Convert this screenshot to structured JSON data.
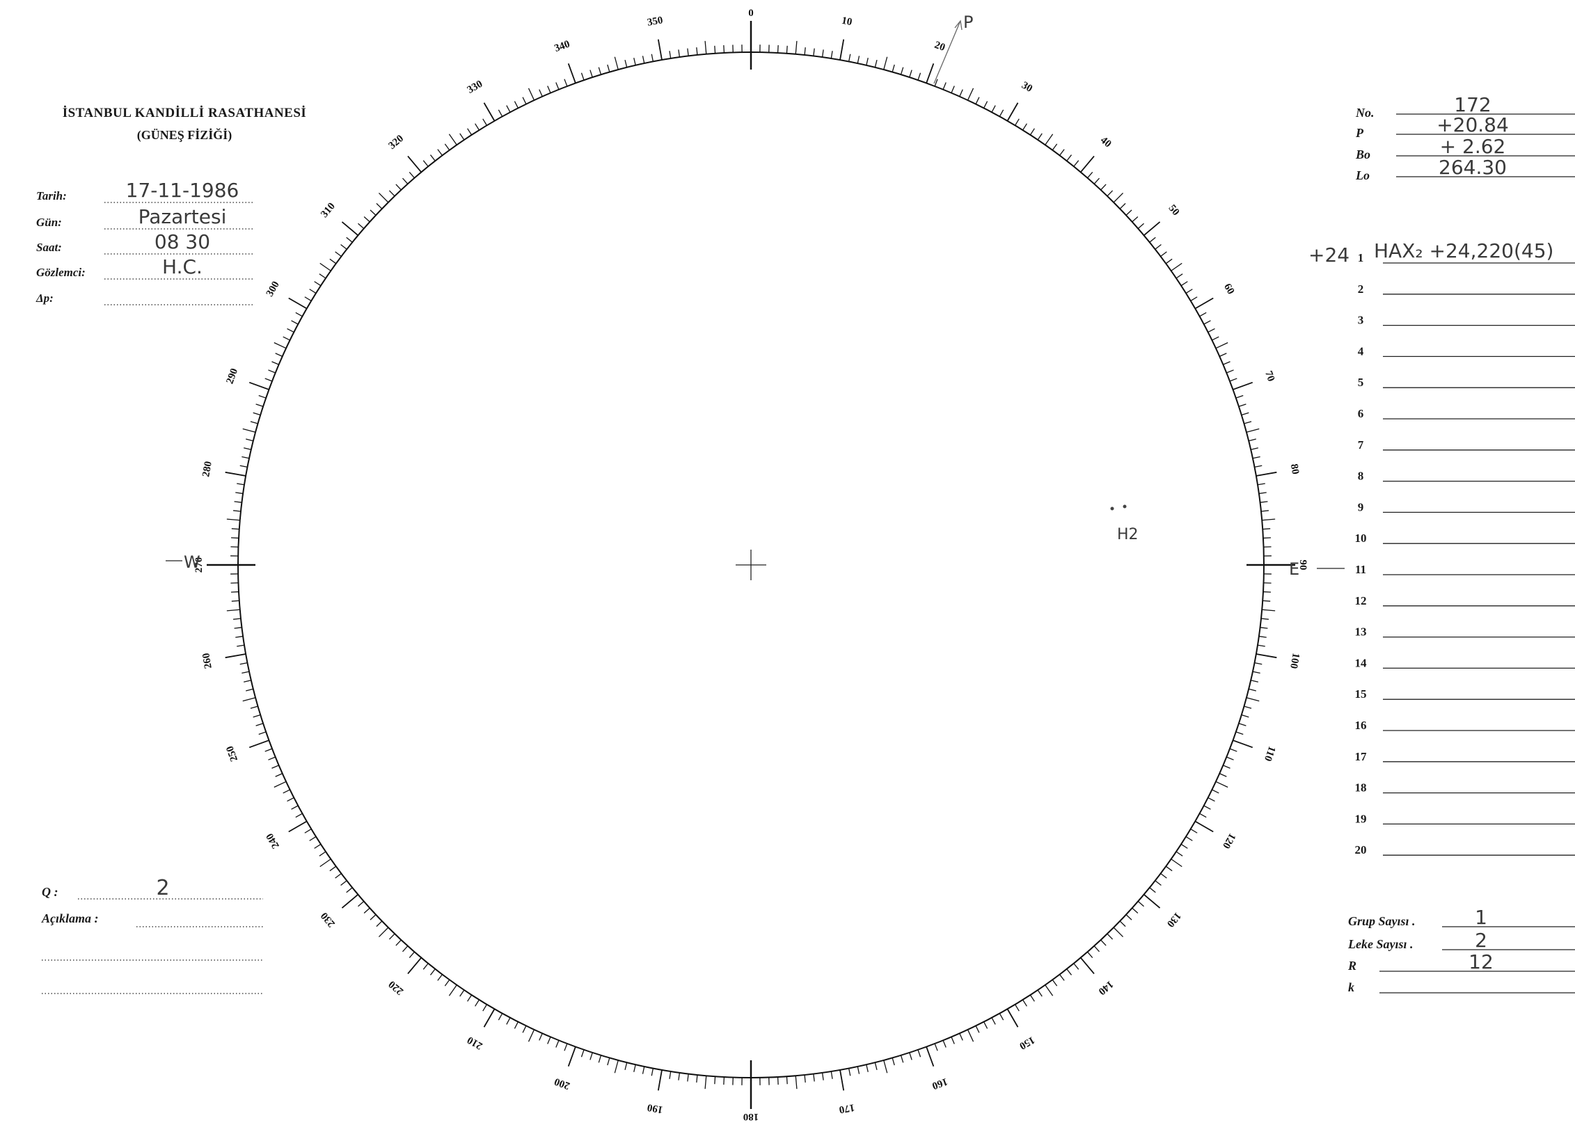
{
  "header": {
    "title": "İSTANBUL KANDİLLİ RASATHANESİ",
    "subtitle": "(GÜNEŞ FİZİĞİ)"
  },
  "observation": [
    {
      "label": "Tarih:",
      "value": "17-11-1986"
    },
    {
      "label": "Gün:",
      "value": "Pazartesi"
    },
    {
      "label": "Saat:",
      "value": "08 30"
    },
    {
      "label": "Gözlemci:",
      "value": "H.C."
    },
    {
      "label": "Δp:"
    }
  ],
  "parameters": [
    {
      "label": "No.",
      "value": "172"
    },
    {
      "label": "P",
      "value": "+20.84"
    },
    {
      "label": "Bo",
      "value": "+ 2.62"
    },
    {
      "label": "Lo",
      "value": "264.30"
    }
  ],
  "dial": {
    "labels": [
      0,
      10,
      20,
      30,
      40,
      50,
      60,
      70,
      80,
      90,
      100,
      110,
      120,
      130,
      140,
      150,
      160,
      170,
      180,
      190,
      200,
      210,
      220,
      230,
      240,
      250,
      260,
      270,
      280,
      290,
      300,
      310,
      320,
      330,
      340,
      350
    ],
    "west": "W",
    "east": "E",
    "pole": "P"
  },
  "spot_label": "H2",
  "groups": [
    {
      "number": 1,
      "note": "+24",
      "text": "HAX₂ +24,220(45)"
    },
    {
      "number": 2
    },
    {
      "number": 3
    },
    {
      "number": 4
    },
    {
      "number": 5
    },
    {
      "number": 6
    },
    {
      "number": 7
    },
    {
      "number": 8
    },
    {
      "number": 9
    },
    {
      "number": 10
    },
    {
      "number": 11
    },
    {
      "number": 12
    },
    {
      "number": 13
    },
    {
      "number": 14
    },
    {
      "number": 15
    },
    {
      "number": 16
    },
    {
      "number": 17
    },
    {
      "number": 18
    },
    {
      "number": 19
    },
    {
      "number": 20
    }
  ],
  "quality": {
    "label": "Q :",
    "value": "2"
  },
  "remarks": {
    "label": "Açıklama :"
  },
  "counts": [
    {
      "label": "Grup Sayısı .",
      "value": "1"
    },
    {
      "label": "Leke Sayısı .",
      "value": "2"
    },
    {
      "label": "R",
      "value": "12"
    },
    {
      "label": "k"
    }
  ]
}
